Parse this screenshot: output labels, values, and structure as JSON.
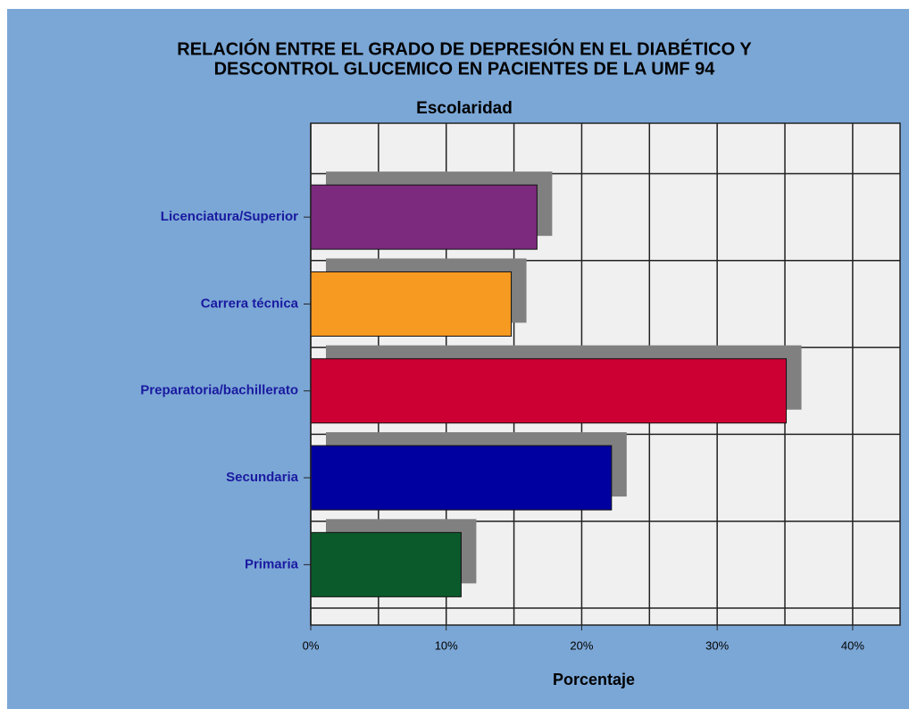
{
  "chart_data": {
    "type": "bar",
    "orientation": "horizontal",
    "title": "RELACIÓN ENTRE EL GRADO DE  DEPRESIÓN EN EL DIABÉTICO Y",
    "title_line2": "DESCONTROL GLUCEMICO EN PACIENTES DE LA UMF  94",
    "subtitle": "Escolaridad",
    "x_label": "Porcentaje",
    "categories": [
      "Licenciatura/Superior",
      "Carrera técnica",
      "Preparatoria/bachillerato",
      "Secundaria",
      "Primaria"
    ],
    "values": [
      16.7,
      14.8,
      35.1,
      22.2,
      11.1
    ],
    "colors": [
      "#7b2a7e",
      "#f79a21",
      "#cc0033",
      "#0000a0",
      "#0b5a2c"
    ],
    "xlim": [
      0,
      43.5
    ],
    "xticks": [
      {
        "value": 0,
        "label": "0%"
      },
      {
        "value": 10,
        "label": "10%"
      },
      {
        "value": 20,
        "label": "20%"
      },
      {
        "value": 30,
        "label": "30%"
      },
      {
        "value": 40,
        "label": "40%"
      }
    ],
    "x_minor_grid": [
      5,
      15,
      25,
      35
    ],
    "grid": true
  }
}
